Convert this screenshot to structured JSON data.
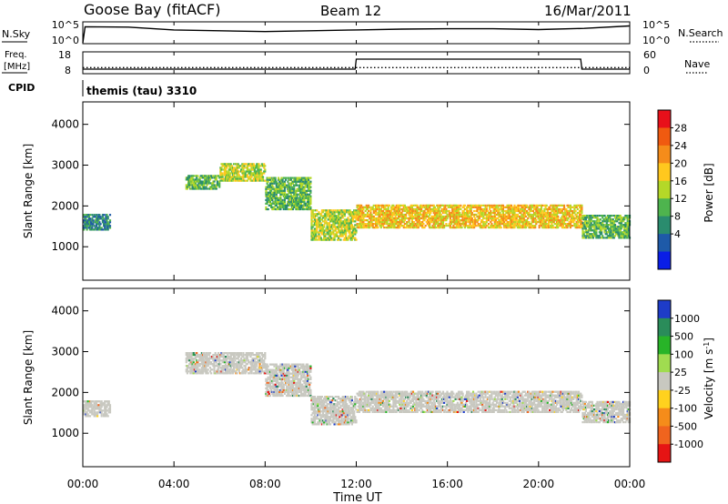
{
  "header": {
    "station": "Goose Bay (fitACF)",
    "beam": "Beam 12",
    "date": "16/Mar/2011"
  },
  "noise_panel": {
    "left_label": "N.Sky",
    "left_ticks": [
      "10^5",
      "10^0"
    ],
    "right_ticks": [
      "10^5",
      "10^0"
    ],
    "right_label": "N.Search"
  },
  "freq_panel": {
    "left_label_line1": "Freq.",
    "left_label_line2": "[MHz]",
    "left_ticks": [
      "18",
      "8"
    ],
    "right_ticks": [
      "60",
      "0"
    ],
    "right_label": "Nave"
  },
  "cpid_panel": {
    "label": "CPID",
    "mode": "themis (tau) 3310"
  },
  "x_axis": {
    "label": "Time UT",
    "ticks": [
      "00:00",
      "04:00",
      "08:00",
      "12:00",
      "16:00",
      "20:00",
      "00:00"
    ]
  },
  "chart_data": [
    {
      "type": "line",
      "name": "noise",
      "x_hours": [
        0,
        0.1,
        2,
        4,
        6,
        8,
        10,
        12,
        14,
        16,
        18,
        20,
        22,
        24
      ],
      "n_sky_log": [
        0,
        4.0,
        3.9,
        3.2,
        3.0,
        2.8,
        3.0,
        3.2,
        3.4,
        3.5,
        3.5,
        3.3,
        3.6,
        4.2
      ],
      "ylim_log": [
        0,
        5
      ]
    },
    {
      "type": "line",
      "name": "frequency_nave",
      "x_hours": [
        0,
        11.95,
        12.0,
        21.85,
        21.9,
        24
      ],
      "freq_mhz": [
        9.5,
        9.5,
        15.0,
        15.0,
        9.5,
        9.5
      ],
      "nave": [
        14,
        14,
        14,
        14,
        14,
        14
      ],
      "freq_ylim": [
        8,
        18
      ],
      "nave_ylim": [
        0,
        60
      ]
    },
    {
      "type": "heatmap",
      "title": "",
      "xlabel": "Time UT",
      "ylabel": "Slant Range [km]",
      "xlim_hours": [
        0,
        24
      ],
      "ylim_km": [
        180,
        4550
      ],
      "yticks": [
        1000,
        2000,
        3000,
        4000
      ],
      "colorbar": {
        "label": "Power [dB]",
        "ticks": [
          "28",
          "24",
          "20",
          "16",
          "12",
          "8",
          "4"
        ],
        "colors": [
          "#e8101a",
          "#f05a10",
          "#f58c1a",
          "#ffc81e",
          "#b4d828",
          "#4eb44e",
          "#2a8c6e",
          "#1e5aa8",
          "#0a1ee6"
        ]
      },
      "echo_bands": [
        {
          "t0": 0.0,
          "t1": 1.2,
          "r0": 1400,
          "r1": 1800,
          "value": 8
        },
        {
          "t0": 4.5,
          "t1": 6.0,
          "r0": 2400,
          "r1": 2750,
          "value": 12
        },
        {
          "t0": 6.0,
          "t1": 8.0,
          "r0": 2600,
          "r1": 3050,
          "value": 16
        },
        {
          "t0": 8.0,
          "t1": 10.0,
          "r0": 1900,
          "r1": 2700,
          "value": 14
        },
        {
          "t0": 10.0,
          "t1": 12.0,
          "r0": 1150,
          "r1": 1900,
          "value": 18
        },
        {
          "t0": 12.0,
          "t1": 21.9,
          "r0": 1450,
          "r1": 2050,
          "value": 20
        },
        {
          "t0": 21.9,
          "t1": 24.0,
          "r0": 1200,
          "r1": 1800,
          "value": 14
        }
      ]
    },
    {
      "type": "heatmap",
      "title": "",
      "xlabel": "Time UT",
      "ylabel": "Slant Range [km]",
      "xlim_hours": [
        0,
        24
      ],
      "ylim_km": [
        180,
        4550
      ],
      "yticks": [
        1000,
        2000,
        3000,
        4000
      ],
      "colorbar": {
        "label": "Velocity [m s^-1]",
        "ticks": [
          "1000",
          "500",
          "100",
          "25",
          "-25",
          "-100",
          "-500",
          "-1000"
        ],
        "colors": [
          "#1e3cc8",
          "#2a8c5a",
          "#28b428",
          "#a0dc50",
          "#c8c8c0",
          "#ffd21e",
          "#f58c1a",
          "#f0641e",
          "#e61414"
        ]
      },
      "echo_bands": [
        {
          "t0": 0.0,
          "t1": 1.2,
          "r0": 1400,
          "r1": 1800,
          "value": 0
        },
        {
          "t0": 4.5,
          "t1": 8.0,
          "r0": 2450,
          "r1": 3000,
          "value": 0
        },
        {
          "t0": 8.0,
          "t1": 10.0,
          "r0": 1900,
          "r1": 2700,
          "value": 0
        },
        {
          "t0": 10.0,
          "t1": 12.0,
          "r0": 1200,
          "r1": 1900,
          "value": 0
        },
        {
          "t0": 12.0,
          "t1": 21.9,
          "r0": 1500,
          "r1": 2050,
          "value": 0
        },
        {
          "t0": 21.9,
          "t1": 24.0,
          "r0": 1250,
          "r1": 1800,
          "value": 0
        }
      ]
    }
  ]
}
